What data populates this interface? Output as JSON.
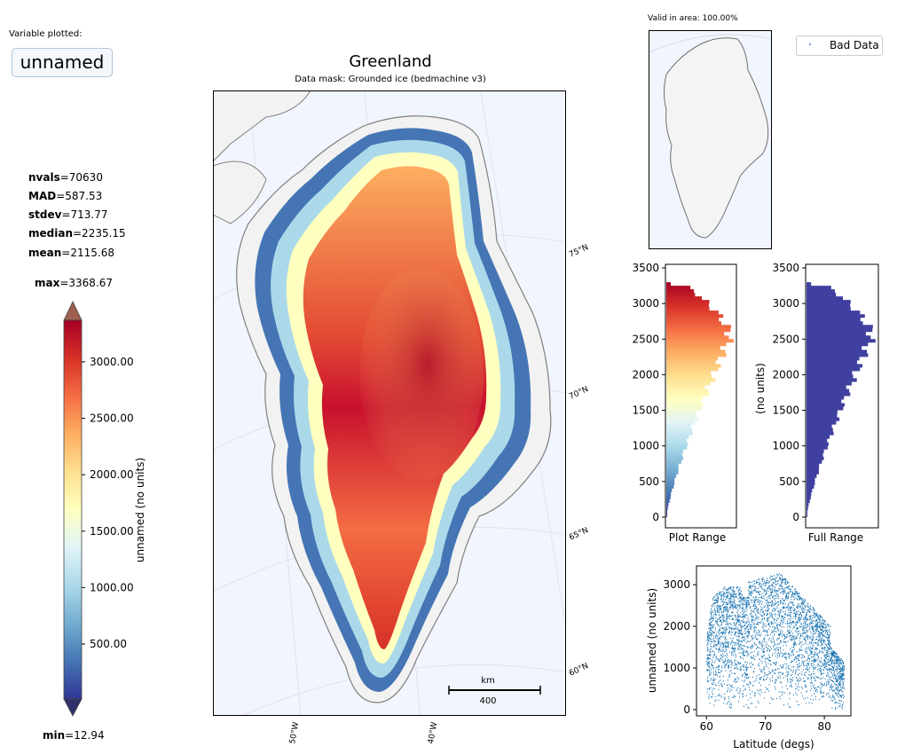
{
  "header": {
    "variable_label": "Variable plotted:",
    "variable_name": "unnamed",
    "title": "Greenland",
    "subtitle": "Data mask:  Grounded ice (bedmachine v3)",
    "valid_area": "Valid in area: 100.00%"
  },
  "stats": {
    "nvals_label": "nvals",
    "nvals": "=70630",
    "mad_label": "MAD",
    "mad": "=587.53",
    "stdev_label": "stdev",
    "stdev": "=713.77",
    "median_label": "median",
    "median": "=2235.15",
    "mean_label": "mean",
    "mean": "=2115.68",
    "max_label": "max",
    "max": "=3368.67",
    "min_label": "min",
    "min": "=12.94"
  },
  "legend": {
    "label": "Bad Data"
  },
  "colors": {
    "ocean": "#f1f5fd",
    "land": "#f2f2f2",
    "coast": "#808080",
    "hist_full": "#4040a0",
    "scatter": "#1f77b4"
  },
  "chart_data": [
    {
      "type": "heatmap",
      "title": "Greenland",
      "subtitle": "Data mask:  Grounded ice (bedmachine v3)",
      "colormap": "RdYlBu_r",
      "colorbar_label": "unnamed (no units)",
      "colorbar_ticks": [
        "500.00",
        "1000.00",
        "1500.00",
        "2000.00",
        "2500.00",
        "3000.00"
      ],
      "colorbar_range": [
        12.94,
        3368.67
      ],
      "lat_labels": [
        "75°N",
        "70°N",
        "65°N",
        "60°N"
      ],
      "lon_labels": [
        "50°W",
        "40°W"
      ],
      "scalebar_unit": "km",
      "scalebar_value": "400"
    },
    {
      "type": "bar",
      "orientation": "horizontal",
      "xlabel": "Plot Range",
      "yticks": [
        "0",
        "500",
        "1000",
        "1500",
        "2000",
        "2500",
        "3000",
        "3500"
      ],
      "ylim": [
        -150,
        3550
      ]
    },
    {
      "type": "bar",
      "orientation": "horizontal",
      "xlabel": "Full Range",
      "ylabel": "(no units)",
      "yticks": [
        "0",
        "500",
        "1000",
        "1500",
        "2000",
        "2500",
        "3000",
        "3500"
      ],
      "ylim": [
        -150,
        3550
      ]
    },
    {
      "type": "scatter",
      "xlabel": "Latitude (degs)",
      "ylabel": "unnamed (no units)",
      "xticks": [
        "60",
        "70",
        "80"
      ],
      "yticks": [
        "0",
        "1000",
        "2000",
        "3000"
      ],
      "xlim": [
        58.3,
        84.5
      ],
      "ylim": [
        -150,
        3450
      ]
    }
  ]
}
